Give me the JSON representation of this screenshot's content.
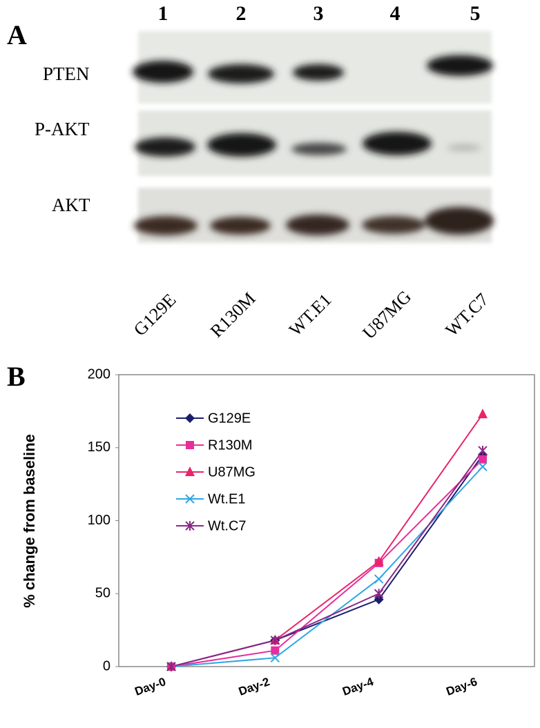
{
  "panel_a": {
    "label": "A",
    "lanes": [
      "1",
      "2",
      "3",
      "4",
      "5"
    ],
    "rows": [
      "PTEN",
      "P-AKT",
      "AKT"
    ],
    "lane_names": [
      "G129E",
      "R130M",
      "WT.E1",
      "U87MG",
      "WT.C7"
    ]
  },
  "chart_data": {
    "type": "line",
    "panel_label": "B",
    "y_label": "% change from baseline",
    "categories": [
      "Day-0",
      "Day-2",
      "Day-4",
      "Day-6"
    ],
    "ylim": [
      0,
      200
    ],
    "yticks": [
      0,
      50,
      100,
      150,
      200
    ],
    "legend": "upper left",
    "series": [
      {
        "name": "G129E",
        "color": "#1c1c6e",
        "marker": "diamond",
        "values": [
          0,
          18,
          46,
          145
        ]
      },
      {
        "name": "R130M",
        "color": "#e62e9c",
        "marker": "square",
        "values": [
          0,
          11,
          71,
          142
        ]
      },
      {
        "name": "U87MG",
        "color": "#e8246a",
        "marker": "triangle",
        "values": [
          0,
          18,
          72,
          173
        ]
      },
      {
        "name": "Wt.E1",
        "color": "#2fa6e6",
        "marker": "x",
        "values": [
          0,
          6,
          60,
          137
        ]
      },
      {
        "name": "Wt.C7",
        "color": "#8a2785",
        "marker": "star",
        "values": [
          0,
          18,
          50,
          148
        ]
      }
    ]
  }
}
